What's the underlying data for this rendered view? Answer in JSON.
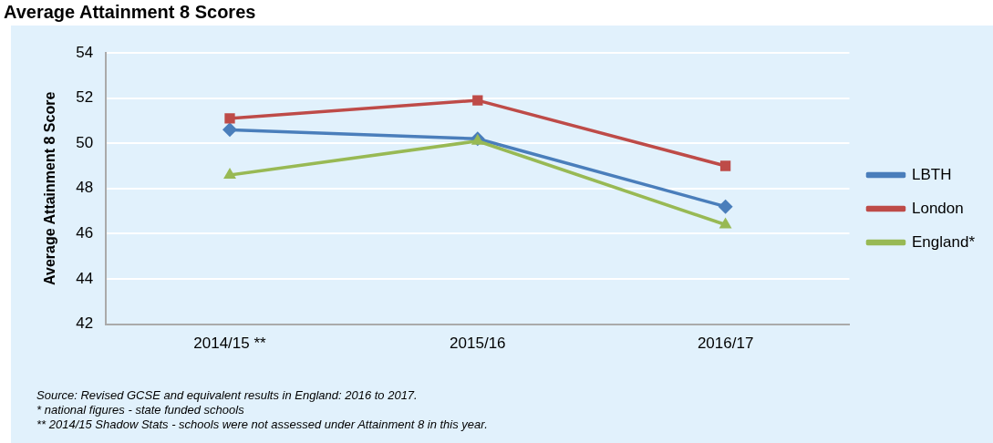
{
  "chart_data": {
    "type": "line",
    "title": "Average Attainment 8 Scores",
    "ylabel": "Average Attainment 8 Score",
    "categories": [
      "2014/15 **",
      "2015/16",
      "2016/17"
    ],
    "series": [
      {
        "name": "LBTH",
        "color": "#4a7ebb",
        "marker": "diamond",
        "values": [
          50.6,
          50.2,
          47.2
        ]
      },
      {
        "name": "London",
        "color": "#be4b48",
        "marker": "square",
        "values": [
          51.1,
          51.9,
          49.0
        ]
      },
      {
        "name": "England*",
        "color": "#98b954",
        "marker": "triangle",
        "values": [
          48.6,
          50.1,
          46.4
        ]
      }
    ],
    "ylim": [
      42,
      54
    ],
    "yticks": [
      42,
      44,
      46,
      48,
      50,
      52,
      54
    ],
    "grid": "y",
    "legend": "right",
    "line_style": "solid",
    "annotations": [
      "Source: Revised GCSE and equivalent results in England: 2016 to 2017.",
      "* national figures - state funded schools",
      "** 2014/15 Shadow Stats - schools were not assessed under Attainment 8 in this year."
    ]
  }
}
